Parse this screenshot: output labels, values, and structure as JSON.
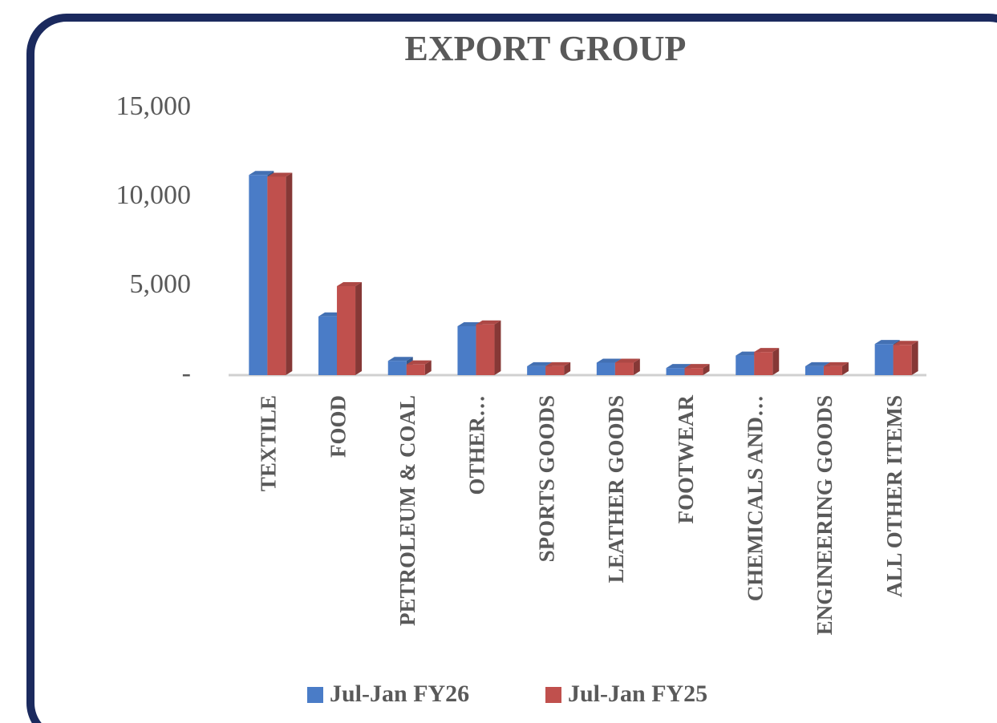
{
  "chart_data": {
    "type": "bar",
    "title": "EXPORT GROUP",
    "categories": [
      "TEXTILE",
      "FOOD",
      "PETROLEUM & COAL",
      "OTHER…",
      "SPORTS GOODS",
      "LEATHER GOODS",
      "FOOTWEAR",
      "CHEMICALS AND…",
      "ENGINEERING GOODS",
      "ALL OTHER ITEMS"
    ],
    "series": [
      {
        "name": "Jul-Jan FY26",
        "color": "#4a7cc7",
        "values": [
          11250,
          3300,
          800,
          2750,
          500,
          700,
          400,
          1100,
          500,
          1750
        ]
      },
      {
        "name": "Jul-Jan FY25",
        "color": "#c0504d",
        "values": [
          11150,
          5000,
          600,
          2850,
          500,
          700,
          400,
          1300,
          500,
          1700
        ]
      }
    ],
    "ylim": [
      0,
      15000
    ],
    "yticks": [
      {
        "value": 0,
        "label": "-"
      },
      {
        "value": 5000,
        "label": "5,000"
      },
      {
        "value": 10000,
        "label": "10,000"
      },
      {
        "value": 15000,
        "label": "15,000"
      }
    ],
    "legend": "bottom"
  }
}
